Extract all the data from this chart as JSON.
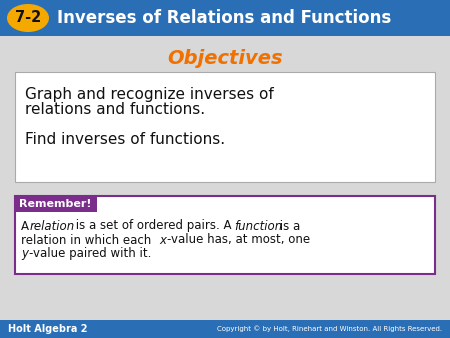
{
  "title_bar_color": "#2a6eb5",
  "title_badge_color": "#f5a800",
  "title_badge_text": "7-2",
  "title_text": "Inverses of Relations and Functions",
  "title_text_color": "#ffffff",
  "objectives_title": "Objectives",
  "objectives_title_color": "#f07000",
  "objectives_line1": "Graph and recognize inverses of",
  "objectives_line2": "relations and functions.",
  "objectives_line3": "Find inverses of functions.",
  "remember_label": "Remember!",
  "remember_label_bg": "#7b2d8b",
  "remember_label_color": "#ffffff",
  "remember_box_border": "#7b2d8b",
  "footer_bg": "#2a6eb5",
  "footer_left": "Holt Algebra 2",
  "footer_right": "Copyright © by Holt, Rinehart and Winston. All Rights Reserved.",
  "footer_color": "#ffffff",
  "bg_color": "#d8d8d8"
}
